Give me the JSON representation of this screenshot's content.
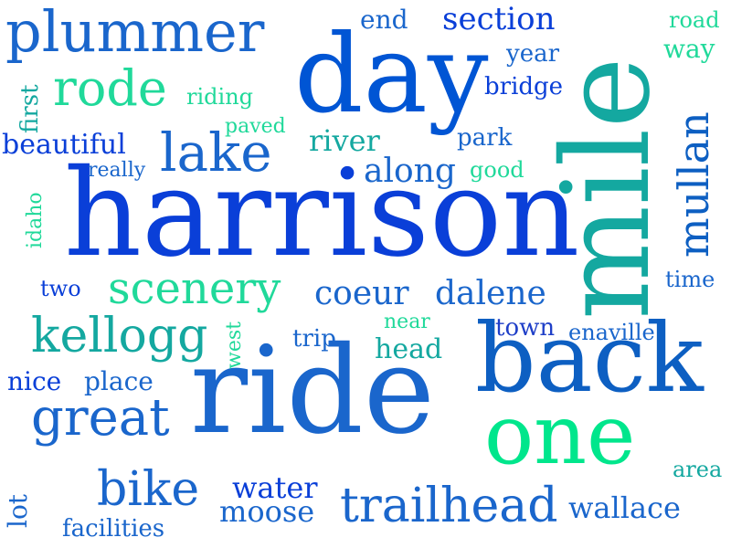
{
  "colors": {
    "background": "#ffffff",
    "palette": [
      "#0055d4",
      "#1a66cc",
      "#0a3fd8",
      "#0d8bbf",
      "#14a8a0",
      "#20d99a",
      "#00e68c",
      "#1f3fc8"
    ]
  },
  "words": [
    {
      "text": "harrison",
      "weight": 100
    },
    {
      "text": "mile",
      "weight": 95
    },
    {
      "text": "ride",
      "weight": 92
    },
    {
      "text": "day",
      "weight": 80
    },
    {
      "text": "back",
      "weight": 75
    },
    {
      "text": "one",
      "weight": 65
    },
    {
      "text": "plummer",
      "weight": 45
    },
    {
      "text": "rode",
      "weight": 40
    },
    {
      "text": "lake",
      "weight": 38
    },
    {
      "text": "great",
      "weight": 36
    },
    {
      "text": "trailhead",
      "weight": 35
    },
    {
      "text": "kellogg",
      "weight": 34
    },
    {
      "text": "bike",
      "weight": 33
    },
    {
      "text": "scenery",
      "weight": 32
    },
    {
      "text": "mullan",
      "weight": 30
    },
    {
      "text": "coeur",
      "weight": 24
    },
    {
      "text": "dalene",
      "weight": 24
    },
    {
      "text": "along",
      "weight": 23
    },
    {
      "text": "moose",
      "weight": 23
    },
    {
      "text": "wallace",
      "weight": 23
    },
    {
      "text": "water",
      "weight": 22
    },
    {
      "text": "section",
      "weight": 22
    },
    {
      "text": "river",
      "weight": 22
    },
    {
      "text": "head",
      "weight": 20
    },
    {
      "text": "beautiful",
      "weight": 20
    },
    {
      "text": "town",
      "weight": 19
    },
    {
      "text": "lot",
      "weight": 18
    },
    {
      "text": "place",
      "weight": 18
    },
    {
      "text": "nice",
      "weight": 18
    },
    {
      "text": "way",
      "weight": 18
    },
    {
      "text": "year",
      "weight": 17
    },
    {
      "text": "end",
      "weight": 17
    },
    {
      "text": "bridge",
      "weight": 17
    },
    {
      "text": "facilities",
      "weight": 17
    },
    {
      "text": "good",
      "weight": 17
    },
    {
      "text": "trip",
      "weight": 17
    },
    {
      "text": "park",
      "weight": 17
    },
    {
      "text": "enaville",
      "weight": 16
    },
    {
      "text": "first",
      "weight": 16
    },
    {
      "text": "time",
      "weight": 16
    },
    {
      "text": "road",
      "weight": 16
    },
    {
      "text": "area",
      "weight": 16
    },
    {
      "text": "riding",
      "weight": 16
    },
    {
      "text": "two",
      "weight": 16
    },
    {
      "text": "paved",
      "weight": 15
    },
    {
      "text": "really",
      "weight": 15
    },
    {
      "text": "idaho",
      "weight": 15
    },
    {
      "text": "west",
      "weight": 15
    },
    {
      "text": "near",
      "weight": 14
    }
  ]
}
